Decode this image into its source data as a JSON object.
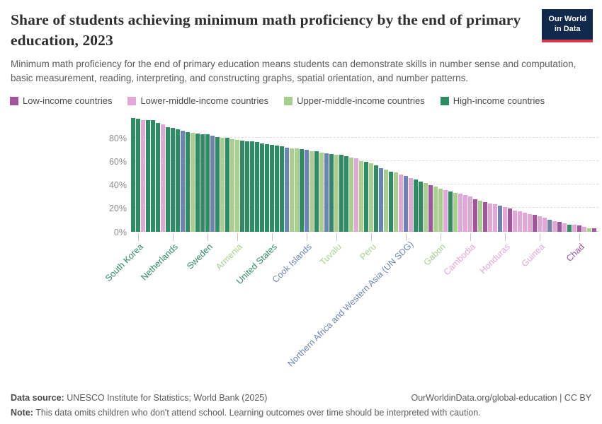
{
  "header": {
    "title": "Share of students achieving minimum math proficiency by the end of primary education, 2023",
    "subtitle": "Minimum math proficiency for the end of primary education means students can demonstrate skills in number sense and computation, basic measurement, reading, interpreting, and constructing graphs, spatial orientation, and number patterns."
  },
  "logo": {
    "line1": "Our World",
    "line2": "in Data",
    "bg_color": "#12294e",
    "accent_color": "#d8394b"
  },
  "legend": {
    "items": [
      {
        "label": "Low-income countries",
        "color": "#a2559c"
      },
      {
        "label": "Lower-middle-income countries",
        "color": "#e2a6d8"
      },
      {
        "label": "Upper-middle-income countries",
        "color": "#a9cf8d"
      },
      {
        "label": "High-income countries",
        "color": "#2e8c64"
      }
    ]
  },
  "chart_data": {
    "type": "bar",
    "title": "Share of students achieving minimum math proficiency by the end of primary education, 2023",
    "ylabel": "",
    "xlabel": "",
    "ylim": [
      0,
      100
    ],
    "grid": "dashed horizontal",
    "legend_position": "top",
    "yticks": [
      "0%",
      "20%",
      "40%",
      "60%",
      "80%"
    ],
    "palette": {
      "low": "#a2559c",
      "lower_middle": "#e2a6d8",
      "upper_middle": "#a9cf8d",
      "high": "#2e8c64",
      "other": "#6d83b5"
    },
    "bars": [
      {
        "v": 96.5,
        "c": "high"
      },
      {
        "v": 96,
        "c": "high"
      },
      {
        "v": 95,
        "c": "lower_middle"
      },
      {
        "v": 95,
        "c": "high"
      },
      {
        "v": 94.5,
        "c": "high"
      },
      {
        "v": 92.5,
        "c": "high"
      },
      {
        "v": 91,
        "c": "lower_middle"
      },
      {
        "v": 88.5,
        "c": "high"
      },
      {
        "v": 88,
        "c": "high"
      },
      {
        "v": 87,
        "c": "high"
      },
      {
        "v": 86,
        "c": "other"
      },
      {
        "v": 84.5,
        "c": "high"
      },
      {
        "v": 84,
        "c": "upper_middle"
      },
      {
        "v": 83.5,
        "c": "high"
      },
      {
        "v": 83,
        "c": "high"
      },
      {
        "v": 82.5,
        "c": "high"
      },
      {
        "v": 81.5,
        "c": "other"
      },
      {
        "v": 80.5,
        "c": "high"
      },
      {
        "v": 80,
        "c": "upper_middle"
      },
      {
        "v": 79.5,
        "c": "high"
      },
      {
        "v": 78.5,
        "c": "upper_middle"
      },
      {
        "v": 78,
        "c": "upper_middle"
      },
      {
        "v": 77.5,
        "c": "high"
      },
      {
        "v": 77,
        "c": "high"
      },
      {
        "v": 76.5,
        "c": "high"
      },
      {
        "v": 76,
        "c": "high"
      },
      {
        "v": 75,
        "c": "high"
      },
      {
        "v": 74.5,
        "c": "high"
      },
      {
        "v": 74,
        "c": "high"
      },
      {
        "v": 73,
        "c": "high"
      },
      {
        "v": 72.5,
        "c": "high"
      },
      {
        "v": 71.5,
        "c": "other"
      },
      {
        "v": 71,
        "c": "upper_middle"
      },
      {
        "v": 70.5,
        "c": "upper_middle"
      },
      {
        "v": 70,
        "c": "high"
      },
      {
        "v": 69.5,
        "c": "other"
      },
      {
        "v": 68.5,
        "c": "upper_middle"
      },
      {
        "v": 68,
        "c": "high"
      },
      {
        "v": 67,
        "c": "upper_middle"
      },
      {
        "v": 66.5,
        "c": "other"
      },
      {
        "v": 66,
        "c": "high"
      },
      {
        "v": 65.5,
        "c": "upper_middle"
      },
      {
        "v": 65,
        "c": "high"
      },
      {
        "v": 64,
        "c": "high"
      },
      {
        "v": 63,
        "c": "upper_middle"
      },
      {
        "v": 62,
        "c": "lower_middle"
      },
      {
        "v": 60,
        "c": "upper_middle"
      },
      {
        "v": 59,
        "c": "high"
      },
      {
        "v": 58,
        "c": "upper_middle"
      },
      {
        "v": 56,
        "c": "high"
      },
      {
        "v": 54,
        "c": "other"
      },
      {
        "v": 52.5,
        "c": "upper_middle"
      },
      {
        "v": 51,
        "c": "high"
      },
      {
        "v": 50,
        "c": "upper_middle"
      },
      {
        "v": 48.5,
        "c": "lower_middle"
      },
      {
        "v": 47,
        "c": "other"
      },
      {
        "v": 45.5,
        "c": "lower_middle"
      },
      {
        "v": 44,
        "c": "high"
      },
      {
        "v": 42.5,
        "c": "high"
      },
      {
        "v": 41,
        "c": "upper_middle"
      },
      {
        "v": 39.5,
        "c": "low"
      },
      {
        "v": 38,
        "c": "upper_middle"
      },
      {
        "v": 36.5,
        "c": "upper_middle"
      },
      {
        "v": 35,
        "c": "lower_middle"
      },
      {
        "v": 34,
        "c": "high"
      },
      {
        "v": 33,
        "c": "upper_middle"
      },
      {
        "v": 32,
        "c": "lower_middle"
      },
      {
        "v": 31,
        "c": "lower_middle"
      },
      {
        "v": 30,
        "c": "lower_middle"
      },
      {
        "v": 27.5,
        "c": "low"
      },
      {
        "v": 26,
        "c": "upper_middle"
      },
      {
        "v": 25,
        "c": "low"
      },
      {
        "v": 24,
        "c": "lower_middle"
      },
      {
        "v": 23,
        "c": "lower_middle"
      },
      {
        "v": 22,
        "c": "other"
      },
      {
        "v": 21,
        "c": "lower_middle"
      },
      {
        "v": 19.5,
        "c": "low"
      },
      {
        "v": 18,
        "c": "lower_middle"
      },
      {
        "v": 17,
        "c": "lower_middle"
      },
      {
        "v": 16,
        "c": "lower_middle"
      },
      {
        "v": 15,
        "c": "lower_middle"
      },
      {
        "v": 14,
        "c": "low"
      },
      {
        "v": 13,
        "c": "lower_middle"
      },
      {
        "v": 11.5,
        "c": "lower_middle"
      },
      {
        "v": 10,
        "c": "other"
      },
      {
        "v": 9,
        "c": "lower_middle"
      },
      {
        "v": 8,
        "c": "low"
      },
      {
        "v": 7,
        "c": "lower_middle"
      },
      {
        "v": 6,
        "c": "high"
      },
      {
        "v": 5.5,
        "c": "lower_middle"
      },
      {
        "v": 5,
        "c": "low"
      },
      {
        "v": 4,
        "c": "lower_middle"
      },
      {
        "v": 3,
        "c": "upper_middle"
      },
      {
        "v": 2.5,
        "c": "low"
      }
    ],
    "xticks": [
      {
        "bar": 1,
        "label": "South Korea",
        "c": "high"
      },
      {
        "bar": 8,
        "label": "Netherlands",
        "c": "high"
      },
      {
        "bar": 15,
        "label": "Sweden",
        "c": "high"
      },
      {
        "bar": 21,
        "label": "Armenia",
        "c": "upper_middle"
      },
      {
        "bar": 28,
        "label": "United States",
        "c": "high"
      },
      {
        "bar": 35,
        "label": "Cook Islands",
        "c": "other"
      },
      {
        "bar": 41,
        "label": "Tuvalu",
        "c": "upper_middle"
      },
      {
        "bar": 48,
        "label": "Peru",
        "c": "upper_middle"
      },
      {
        "bar": 55,
        "label": "Northern Africa and Western Asia (UN SDG)",
        "c": "other"
      },
      {
        "bar": 62,
        "label": "Gabon",
        "c": "upper_middle"
      },
      {
        "bar": 68,
        "label": "Cambodia",
        "c": "lower_middle"
      },
      {
        "bar": 75,
        "label": "Honduras",
        "c": "lower_middle"
      },
      {
        "bar": 82,
        "label": "Guinea",
        "c": "lower_middle"
      },
      {
        "bar": 90,
        "label": "Chad",
        "c": "low"
      }
    ]
  },
  "footer": {
    "source_label": "Data source:",
    "source_text": "UNESCO Institute for Statistics; World Bank (2025)",
    "right_text": "OurWorldinData.org/global-education | CC BY",
    "note_label": "Note:",
    "note_text": "This data omits children who don't attend school. Learning outcomes over time should be interpreted with caution."
  }
}
